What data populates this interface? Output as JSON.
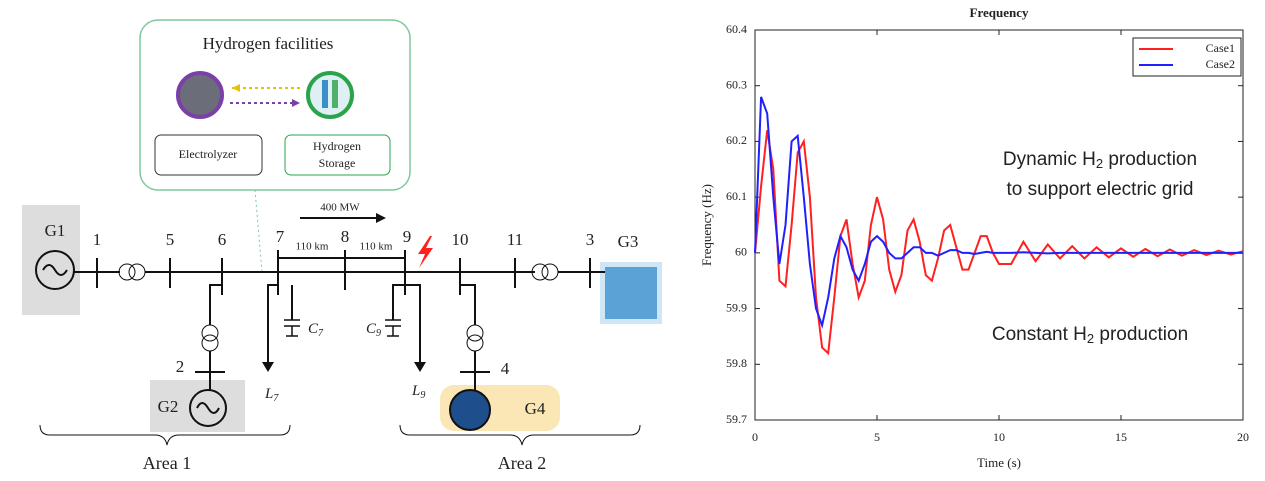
{
  "diagram": {
    "facilities": {
      "title": "Hydrogen facilities",
      "electrolyzer": "Electrolyzer",
      "storage": [
        "Hydrogen",
        "Storage"
      ]
    },
    "generators": [
      "G1",
      "G2",
      "G3",
      "G4"
    ],
    "buses": [
      "1",
      "2",
      "3",
      "4",
      "5",
      "6",
      "7",
      "8",
      "9",
      "10",
      "11"
    ],
    "power_flow": "400 MW",
    "line_lengths": [
      "110 km",
      "110 km"
    ],
    "loads": [
      {
        "letter": "L",
        "sub": "7"
      },
      {
        "letter": "L",
        "sub": "9"
      }
    ],
    "capacitors": [
      {
        "letter": "C",
        "sub": "7"
      },
      {
        "letter": "C",
        "sub": "9"
      }
    ],
    "areas": [
      "Area 1",
      "Area 2"
    ]
  },
  "chart_data": {
    "type": "line",
    "title": "Frequency",
    "xlabel": "Time (s)",
    "ylabel": "Frequency (Hz)",
    "x": [
      0,
      0.25,
      0.5,
      0.75,
      1,
      1.25,
      1.5,
      1.75,
      2,
      2.25,
      2.5,
      2.75,
      3,
      3.25,
      3.5,
      3.75,
      4,
      4.25,
      4.5,
      4.75,
      5,
      5.25,
      5.5,
      5.75,
      6,
      6.25,
      6.5,
      6.75,
      7,
      7.25,
      7.5,
      7.75,
      8,
      8.25,
      8.5,
      8.75,
      9,
      9.25,
      9.5,
      9.75,
      10,
      10.5,
      11,
      11.5,
      12,
      12.5,
      13,
      13.5,
      14,
      14.5,
      15,
      15.5,
      16,
      16.5,
      17,
      17.5,
      18,
      18.5,
      19,
      19.5,
      20
    ],
    "xlim": [
      0,
      20
    ],
    "xticks": [
      0,
      5,
      10,
      15,
      20
    ],
    "ylim": [
      59.7,
      60.4
    ],
    "yticks": [
      59.7,
      59.8,
      59.9,
      60,
      60.1,
      60.2,
      60.3,
      60.4
    ],
    "legend": "upper right",
    "series": [
      {
        "name": "Case1",
        "color": "#ff2020",
        "values": [
          60,
          60.12,
          60.22,
          60.15,
          59.95,
          59.94,
          60.05,
          60.18,
          60.2,
          60.1,
          59.92,
          59.83,
          59.82,
          59.92,
          60.03,
          60.06,
          59.98,
          59.92,
          59.95,
          60.05,
          60.1,
          60.06,
          59.97,
          59.93,
          59.96,
          60.04,
          60.06,
          60.02,
          59.96,
          59.95,
          59.99,
          60.04,
          60.05,
          60.01,
          59.97,
          59.97,
          60,
          60.03,
          60.03,
          60,
          59.98,
          59.98,
          60.02,
          59.985,
          60.015,
          59.99,
          60.012,
          59.99,
          60.01,
          59.992,
          60.008,
          59.993,
          60.007,
          59.994,
          60.006,
          59.995,
          60.005,
          59.996,
          60.004,
          59.997,
          60.003
        ]
      },
      {
        "name": "Case2",
        "color": "#2020ff",
        "values": [
          60,
          60.28,
          60.25,
          60.1,
          59.98,
          60.05,
          60.2,
          60.21,
          60.1,
          59.98,
          59.9,
          59.87,
          59.92,
          59.99,
          60.03,
          60.01,
          59.97,
          59.95,
          59.98,
          60.02,
          60.03,
          60.02,
          60,
          59.99,
          59.99,
          60,
          60.01,
          60.01,
          60,
          60,
          59.995,
          60,
          60.005,
          60.005,
          60,
          60,
          59.998,
          60,
          60.002,
          60,
          60,
          60,
          60.001,
          60,
          59.999,
          60,
          60,
          60,
          60,
          60,
          60,
          60,
          60,
          60,
          60,
          60,
          60,
          60,
          60,
          60,
          60
        ]
      }
    ],
    "annotations": [
      {
        "text": "Dynamic H",
        "subscript": "2",
        "text_after": " production",
        "line2": "to support electric grid",
        "color": "#2020ff"
      },
      {
        "text": "Constant H",
        "subscript": "2",
        "text_after": " production",
        "color": "#ff2020"
      }
    ]
  }
}
